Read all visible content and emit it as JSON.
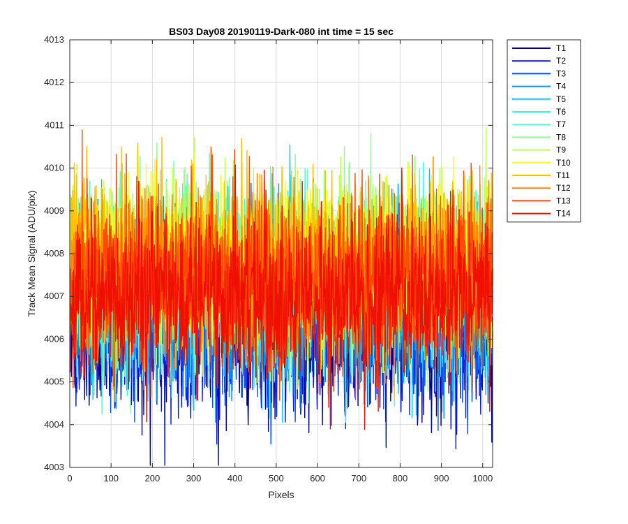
{
  "chart_data": {
    "type": "line",
    "title": "BS03 Day08 20190119-Dark-080 int time = 15 sec",
    "xlabel": "Pixels",
    "ylabel": "Track Mean Signal (ADU/pix)",
    "xlim": [
      0,
      1024
    ],
    "ylim": [
      4003,
      4013
    ],
    "xticks": [
      0,
      100,
      200,
      300,
      400,
      500,
      600,
      700,
      800,
      900,
      1000
    ],
    "yticks": [
      4003,
      4004,
      4005,
      4006,
      4007,
      4008,
      4009,
      4010,
      4011,
      4012,
      4013
    ],
    "grid": true,
    "legend_position": "outside-top-right",
    "x_points": 1024,
    "series": [
      {
        "name": "T1",
        "color": "#00008f",
        "mean": 4006.2,
        "spread": 0.95
      },
      {
        "name": "T2",
        "color": "#0019d6",
        "mean": 4006.4,
        "spread": 0.95
      },
      {
        "name": "T3",
        "color": "#0051ff",
        "mean": 4006.6,
        "spread": 0.95
      },
      {
        "name": "T4",
        "color": "#0092ff",
        "mean": 4006.9,
        "spread": 0.95
      },
      {
        "name": "T5",
        "color": "#00c8ff",
        "mean": 4007.1,
        "spread": 0.95
      },
      {
        "name": "T6",
        "color": "#2bfff0",
        "mean": 4007.3,
        "spread": 0.95
      },
      {
        "name": "T7",
        "color": "#5dffc6",
        "mean": 4007.5,
        "spread": 0.95
      },
      {
        "name": "T8",
        "color": "#8bff8f",
        "mean": 4007.7,
        "spread": 0.95
      },
      {
        "name": "T9",
        "color": "#c0ff5a",
        "mean": 4007.8,
        "spread": 0.95
      },
      {
        "name": "T10",
        "color": "#f5ff1f",
        "mean": 4007.9,
        "spread": 0.95
      },
      {
        "name": "T11",
        "color": "#ffc000",
        "mean": 4007.9,
        "spread": 0.95
      },
      {
        "name": "T12",
        "color": "#ff8600",
        "mean": 4007.6,
        "spread": 0.95
      },
      {
        "name": "T13",
        "color": "#ff4800",
        "mean": 4007.3,
        "spread": 0.95
      },
      {
        "name": "T14",
        "color": "#f01000",
        "mean": 4007.0,
        "spread": 0.95
      }
    ]
  }
}
